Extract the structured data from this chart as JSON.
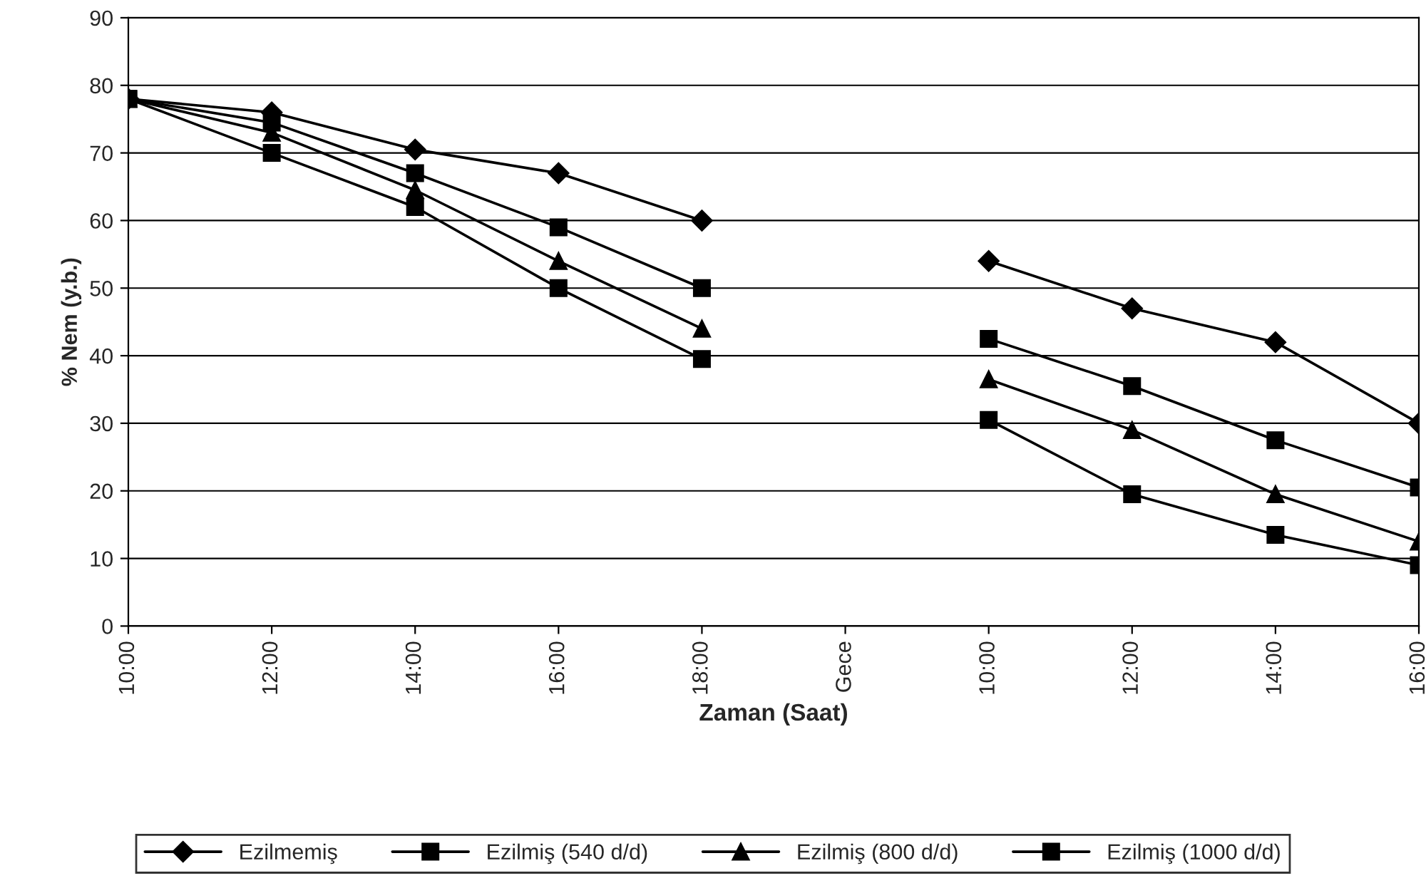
{
  "chart_data": {
    "type": "line",
    "xlabel": "Zaman (Saat)",
    "ylabel": "% Nem (y.b.)",
    "categories": [
      "10:00",
      "12:00",
      "14:00",
      "16:00",
      "18:00",
      "Gece",
      "10:00",
      "12:00",
      "14:00",
      "16:00"
    ],
    "series": [
      {
        "name": "Ezilmemiş",
        "color": "#000000",
        "marker": "diamond",
        "values": [
          78,
          76,
          70.5,
          67,
          60,
          null,
          54,
          47,
          42,
          30
        ]
      },
      {
        "name": "Ezilmiş (540 d/d)",
        "color": "#000000",
        "marker": "square",
        "values": [
          78,
          74.5,
          67,
          59,
          50,
          null,
          42.5,
          35.5,
          27.5,
          20.5
        ]
      },
      {
        "name": "Ezilmiş (800 d/d)",
        "color": "#000000",
        "marker": "triangle",
        "values": [
          78,
          73,
          64.5,
          54,
          44,
          null,
          36.5,
          29,
          19.5,
          12.5
        ]
      },
      {
        "name": "Ezilmiş (1000 d/d)",
        "color": "#000000",
        "marker": "square",
        "values": [
          78,
          70,
          62,
          50,
          39.5,
          null,
          30.5,
          19.5,
          13.5,
          9
        ]
      }
    ],
    "ylim": [
      0,
      90
    ],
    "yticks": [
      0,
      10,
      20,
      30,
      40,
      50,
      60,
      70,
      80,
      90
    ],
    "grid": "y",
    "legend": "bottom",
    "line_style": "solid"
  }
}
